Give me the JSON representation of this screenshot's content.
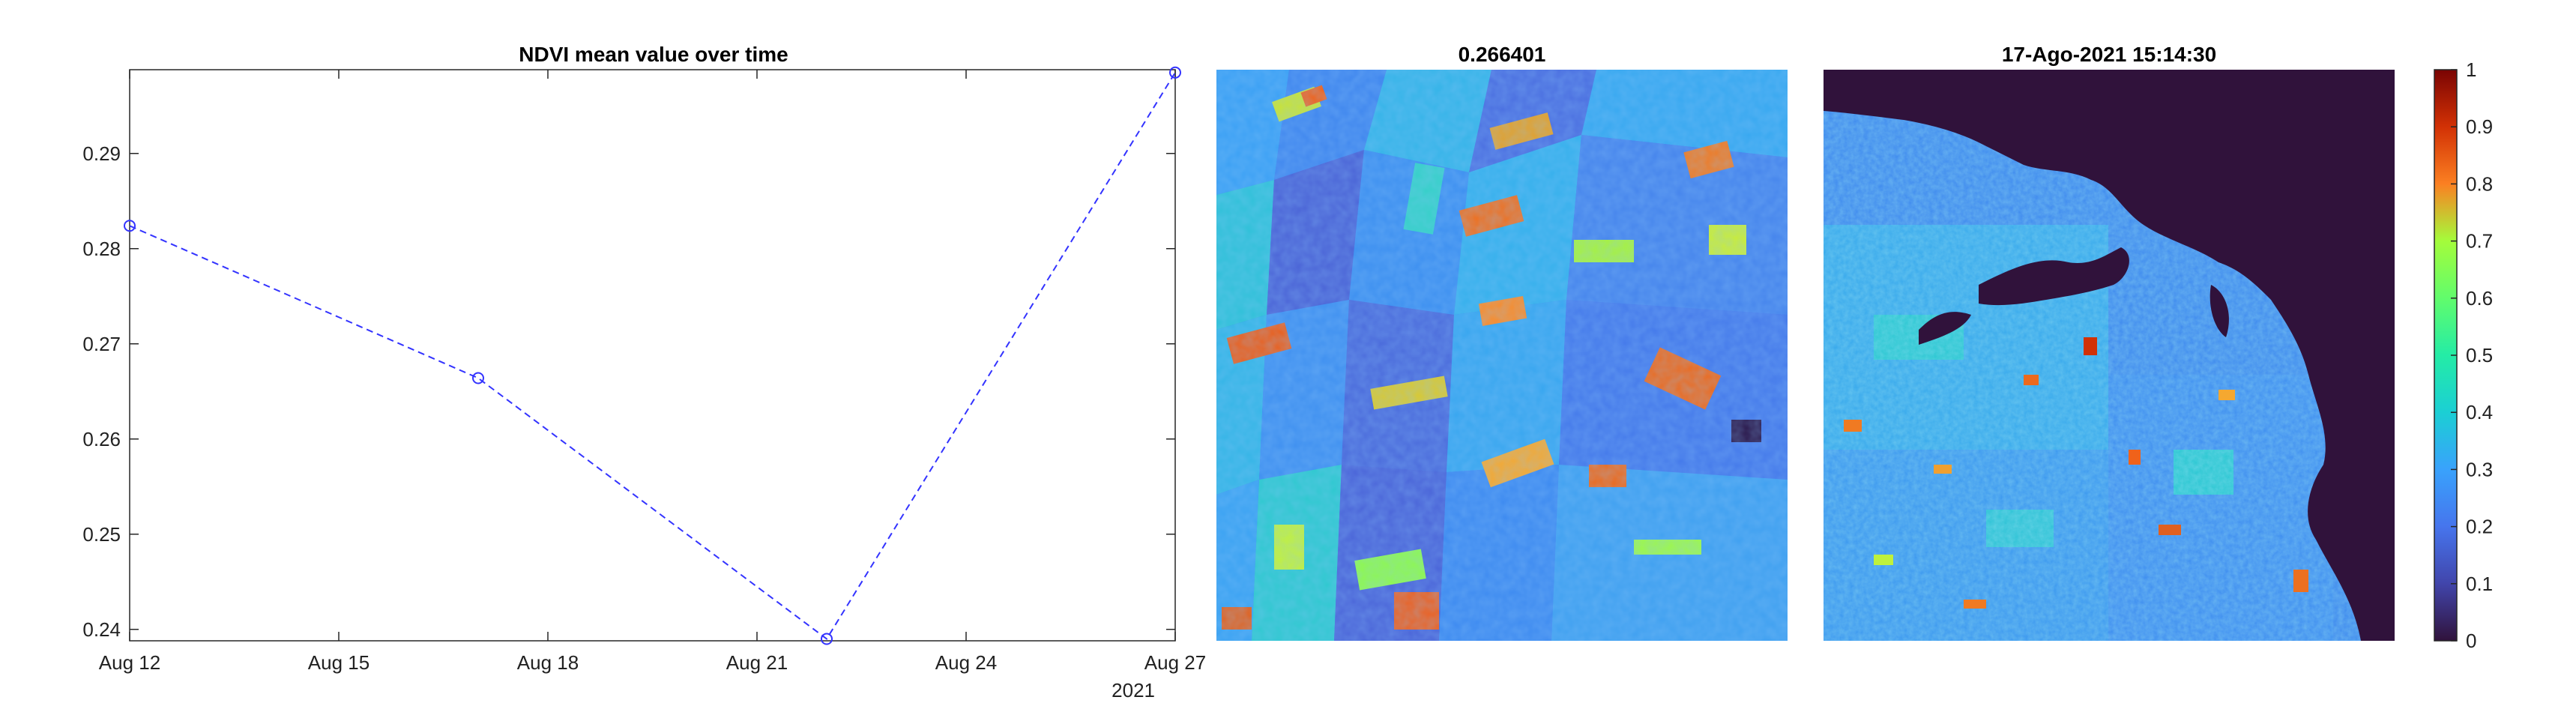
{
  "chart_data": [
    {
      "type": "line",
      "title": "NDVI mean value over time",
      "xlabel": "",
      "ylabel": "",
      "x": [
        "2021-08-12",
        "2021-08-17",
        "2021-08-22",
        "2021-08-27"
      ],
      "series": [
        {
          "values": [
            0.2824,
            0.2664,
            0.239,
            0.2985
          ]
        }
      ],
      "xlim": [
        "2021-08-12",
        "2021-08-27"
      ],
      "ylim": [
        0.2388,
        0.2988
      ],
      "x_ticks": [
        "Aug 12",
        "Aug 15",
        "Aug 18",
        "Aug 21",
        "Aug 24",
        "Aug 27"
      ],
      "x_tick_dates": [
        "2021-08-12",
        "2021-08-15",
        "2021-08-18",
        "2021-08-21",
        "2021-08-24",
        "2021-08-27"
      ],
      "x_secondary_label": "2021",
      "y_ticks": [
        0.24,
        0.25,
        0.26,
        0.27,
        0.28,
        0.29
      ],
      "line_style": "dashed",
      "marker": "circle",
      "line_color": "#3333ff",
      "grid": false,
      "legend": "none"
    },
    {
      "type": "heatmap",
      "title": "0.266401",
      "description_colormap": "turbo",
      "clim": [
        0,
        1
      ]
    },
    {
      "type": "heatmap",
      "title": "17-Ago-2021 15:14:30",
      "description_colormap": "turbo",
      "clim": [
        0,
        1
      ],
      "colorbar_ticks": [
        "0",
        "0.1",
        "0.2",
        "0.3",
        "0.4",
        "0.5",
        "0.6",
        "0.7",
        "0.8",
        "0.9",
        "1"
      ]
    }
  ],
  "colors": {
    "axis": "#262626",
    "line": "#3333ff",
    "water": "#30123b"
  }
}
